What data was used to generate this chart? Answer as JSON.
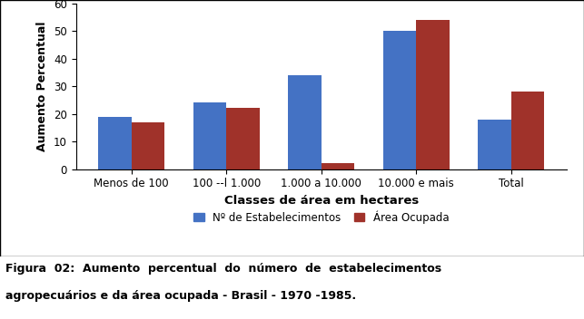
{
  "categories": [
    "Menos de 100",
    "100 --l 1.000",
    "1.000 a 10.000",
    "10.000 e mais",
    "Total"
  ],
  "series": {
    "Nº de Estabelecimentos": [
      19,
      24,
      34,
      50,
      18
    ],
    "Área Ocupada": [
      17,
      22,
      2,
      54,
      28
    ]
  },
  "bar_colors": {
    "Nº de Estabelecimentos": "#4472C4",
    "Área Ocupada": "#A0322A"
  },
  "ylabel": "Aumento Percentual",
  "xlabel": "Classes de área em hectares",
  "ylim": [
    0,
    60
  ],
  "yticks": [
    0,
    10,
    20,
    30,
    40,
    50,
    60
  ],
  "bar_width": 0.35,
  "background_color": "#FFFFFF",
  "caption_line1": "Figura  02:  Aumento  percentual  do  número  de  estabelecimentos",
  "caption_line2": "agropecuários e da área ocupada - Brasil - 1970 -1985."
}
